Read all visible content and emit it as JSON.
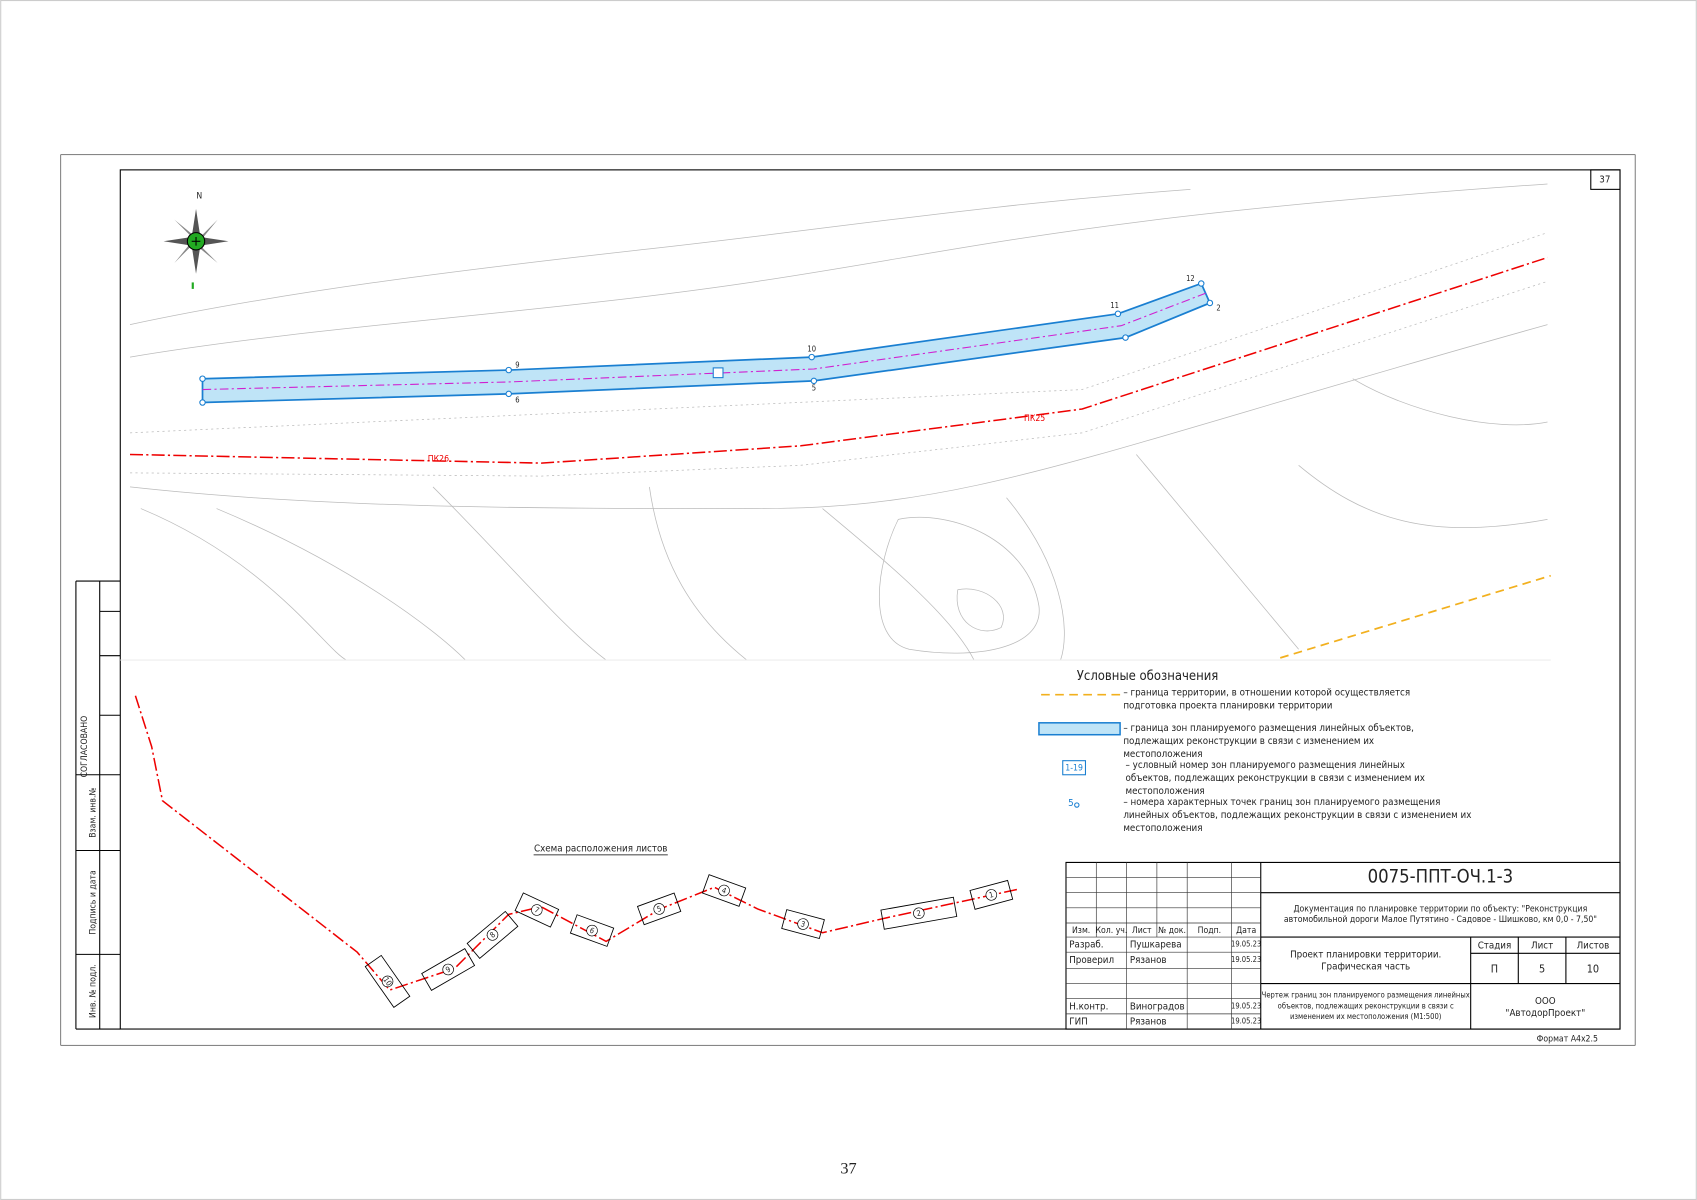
{
  "page_number": "37",
  "sheet_number": "37",
  "map": {
    "north": "N",
    "pk26": "ПК26",
    "pk25": "ПК25",
    "points": [
      "9",
      "6",
      "10",
      "5",
      "11",
      "12",
      "2"
    ]
  },
  "legend": {
    "title": "Условные обозначения",
    "items": [
      {
        "lines": [
          "– граница территории, в отношении  которой осуществляется",
          "подготовка проекта планировки территории"
        ]
      },
      {
        "lines": [
          "– граница зон планируемого размещения линейных объектов,",
          "подлежащих реконструкции в связи с изменением их",
          "местоположения"
        ]
      },
      {
        "symbol": "1-19",
        "lines": [
          "– условный номер зон планируемого размещения линейных",
          "объектов, подлежащих реконструкции в связи с изменением их",
          "местоположения"
        ]
      },
      {
        "symbol": "5",
        "lines": [
          "– номера характерных точек границ зон планируемого размещения",
          "линейных объектов, подлежащих реконструкции в связи с изменением их",
          "местоположения"
        ]
      }
    ]
  },
  "scheme": {
    "title": "Схема расположения листов",
    "sheets": [
      "1",
      "2",
      "3",
      "4",
      "5",
      "6",
      "7",
      "8",
      "9",
      "10"
    ]
  },
  "side_stamp": [
    "СОГЛАСОВАНО",
    "Взам. инв.№",
    "Подпись и дата",
    "Инв. № подл."
  ],
  "stamp": {
    "code": "0075-ППТ-ОЧ.1-3",
    "description": [
      "Документация по планировке территории по объекту: \"Реконструкция",
      "автомобильной дороги Малое Путятино - Садовое - Шишково, км 0,0 - 7,50\""
    ],
    "part": [
      "Проект планировки территории.",
      "Графическая часть"
    ],
    "headers": [
      "Изм.",
      "Кол. уч.",
      "Лист",
      "№ док.",
      "Подп.",
      "Дата"
    ],
    "signatures": [
      [
        "Разраб.",
        "Пушкарева",
        "19.05.23"
      ],
      [
        "Проверил",
        "Рязанов",
        "19.05.23"
      ],
      [
        "Н.контр.",
        "Виноградов",
        "19.05.23"
      ],
      [
        "ГИП",
        "Рязанов",
        "19.05.23"
      ]
    ],
    "stage_headers": [
      "Стадия",
      "Лист",
      "Листов"
    ],
    "stage_values": [
      "П",
      "5",
      "10"
    ],
    "drawing": [
      "Чертеж границ зон планируемого размещения линейных",
      "объектов, подлежащих реконструкции  в связи с",
      "изменением их местоположения (М1:500)"
    ],
    "organization": [
      "ООО",
      "\"АвтодорПроект\""
    ],
    "format": "Формат А4х2.5"
  }
}
